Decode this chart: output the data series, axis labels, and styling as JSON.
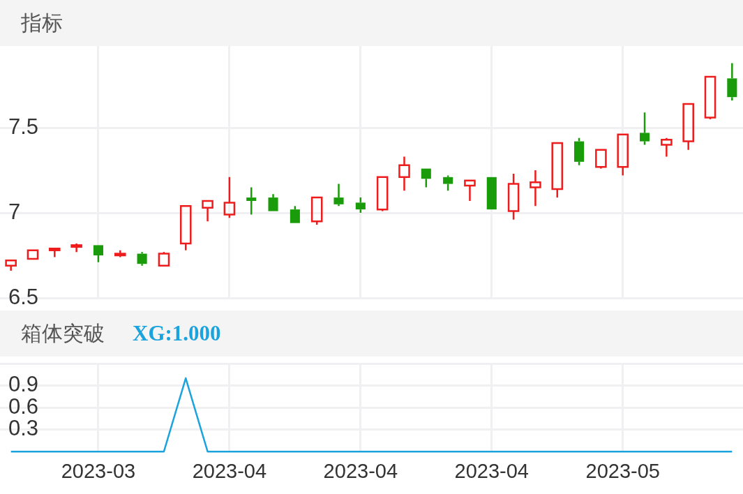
{
  "chart_data": [
    {
      "type": "candlestick",
      "title": "指标",
      "categories": [
        null,
        null,
        null,
        null,
        "2023-03",
        null,
        null,
        null,
        null,
        null,
        "2023-04",
        null,
        null,
        null,
        null,
        null,
        "2023-04",
        null,
        null,
        null,
        null,
        null,
        "2023-04",
        null,
        null,
        null,
        null,
        null,
        "2023-05",
        null,
        null,
        null,
        null,
        null
      ],
      "ohlc": [
        [
          6.69,
          6.72,
          6.66,
          6.72
        ],
        [
          6.73,
          6.78,
          6.73,
          6.78
        ],
        [
          6.78,
          6.79,
          6.74,
          6.79
        ],
        [
          6.8,
          6.82,
          6.77,
          6.81
        ],
        [
          6.81,
          6.81,
          6.71,
          6.75
        ],
        [
          6.75,
          6.78,
          6.74,
          6.76
        ],
        [
          6.76,
          6.77,
          6.69,
          6.7
        ],
        [
          6.69,
          6.77,
          6.69,
          6.76
        ],
        [
          6.82,
          7.04,
          6.78,
          7.04
        ],
        [
          7.03,
          7.07,
          6.95,
          7.07
        ],
        [
          6.99,
          7.21,
          6.97,
          7.06
        ],
        [
          7.09,
          7.15,
          6.99,
          7.07
        ],
        [
          7.09,
          7.11,
          7.01,
          7.01
        ],
        [
          7.02,
          7.04,
          6.94,
          6.94
        ],
        [
          6.95,
          7.09,
          6.93,
          7.09
        ],
        [
          7.09,
          7.17,
          7.04,
          7.05
        ],
        [
          7.06,
          7.09,
          7.0,
          7.02
        ],
        [
          7.02,
          7.21,
          7.01,
          7.21
        ],
        [
          7.21,
          7.33,
          7.13,
          7.28
        ],
        [
          7.26,
          7.26,
          7.15,
          7.2
        ],
        [
          7.21,
          7.22,
          7.13,
          7.17
        ],
        [
          7.16,
          7.19,
          7.07,
          7.19
        ],
        [
          7.21,
          7.21,
          7.02,
          7.02
        ],
        [
          7.01,
          7.23,
          6.96,
          7.17
        ],
        [
          7.15,
          7.25,
          7.04,
          7.18
        ],
        [
          7.14,
          7.41,
          7.09,
          7.41
        ],
        [
          7.42,
          7.44,
          7.28,
          7.3
        ],
        [
          7.27,
          7.37,
          7.26,
          7.37
        ],
        [
          7.27,
          7.46,
          7.22,
          7.46
        ],
        [
          7.47,
          7.59,
          7.4,
          7.42
        ],
        [
          7.4,
          7.44,
          7.33,
          7.43
        ],
        [
          7.42,
          7.64,
          7.37,
          7.64
        ],
        [
          7.56,
          7.8,
          7.55,
          7.8
        ],
        [
          7.79,
          7.88,
          7.66,
          7.68
        ]
      ],
      "colors": [
        "#ee1c1c",
        "#ee1c1c",
        "#ee1c1c",
        "#ee1c1c",
        "#1a9c0a",
        "#ee1c1c",
        "#1a9c0a",
        "#ee1c1c",
        "#ee1c1c",
        "#ee1c1c",
        "#ee1c1c",
        "#1a9c0a",
        "#1a9c0a",
        "#1a9c0a",
        "#ee1c1c",
        "#1a9c0a",
        "#1a9c0a",
        "#ee1c1c",
        "#ee1c1c",
        "#1a9c0a",
        "#1a9c0a",
        "#ee1c1c",
        "#1a9c0a",
        "#ee1c1c",
        "#ee1c1c",
        "#ee1c1c",
        "#1a9c0a",
        "#ee1c1c",
        "#ee1c1c",
        "#1a9c0a",
        "#ee1c1c",
        "#ee1c1c",
        "#ee1c1c",
        "#1a9c0a"
      ],
      "ylim": [
        6.5,
        7.98
      ],
      "yticks": [
        6.5,
        7,
        7.5
      ],
      "grid": true,
      "tick_labels": "y"
    },
    {
      "type": "line",
      "title": "箱体突破",
      "categories": [
        null,
        null,
        null,
        null,
        "2023-03",
        null,
        null,
        null,
        null,
        null,
        "2023-04",
        null,
        null,
        null,
        null,
        null,
        "2023-04",
        null,
        null,
        null,
        null,
        null,
        "2023-04",
        null,
        null,
        null,
        null,
        null,
        "2023-05",
        null,
        null,
        null,
        null,
        null
      ],
      "series": [
        {
          "name": "XG:1.000",
          "color": "#1aa3dd",
          "values": [
            0,
            0,
            0,
            0,
            0,
            0,
            0,
            0,
            1,
            0,
            0,
            0,
            0,
            0,
            0,
            0,
            0,
            0,
            0,
            0,
            0,
            0,
            0,
            0,
            0,
            0,
            0,
            0,
            0,
            0,
            0,
            0,
            0,
            0
          ]
        }
      ],
      "ylim": [
        0,
        1.2
      ],
      "yticks": [
        0.3,
        0.6,
        0.9,
        {
          "value": 1.2,
          "label": null
        }
      ],
      "grid": true,
      "marker": "none"
    }
  ]
}
